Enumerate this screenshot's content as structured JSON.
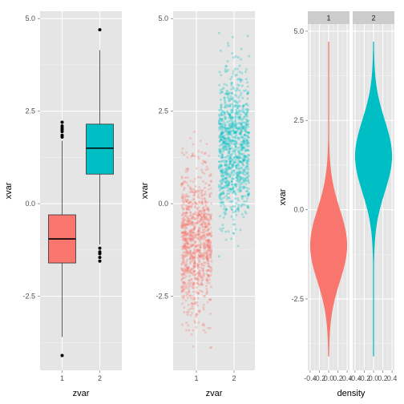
{
  "colors": {
    "group1": "#F8766D",
    "group2": "#00BFC4",
    "panel_bg": "#E5E5E5",
    "grid_major": "#FFFFFF",
    "grid_minor": "#F2F2F2",
    "strip_bg": "#CCCCCC"
  },
  "chart_data": [
    {
      "type": "box",
      "xlabel": "zvar",
      "ylabel": "xvar",
      "categories": [
        "1",
        "2"
      ],
      "ylim": [
        -4.5,
        5.2
      ],
      "yticks": [
        -2.5,
        0,
        2.5,
        5
      ],
      "ytick_labels": [
        "-2.5",
        "0.0",
        "2.5",
        "5.0"
      ],
      "series": [
        {
          "category": "1",
          "min": -3.6,
          "q1": -1.6,
          "median": -0.95,
          "q3": -0.3,
          "max": 1.7,
          "outliers": [
            2.2,
            2.1,
            2.05,
            2.0,
            1.95,
            1.85,
            1.8,
            -4.1
          ]
        },
        {
          "category": "2",
          "min": -1.1,
          "q1": 0.8,
          "median": 1.5,
          "q3": 2.15,
          "max": 4.15,
          "outliers": [
            4.7,
            -1.2,
            -1.3,
            -1.35,
            -1.45,
            -1.55
          ]
        }
      ]
    },
    {
      "type": "scatter",
      "xlabel": "zvar",
      "ylabel": "xvar",
      "categories": [
        "1",
        "2"
      ],
      "ylim": [
        -4.5,
        5.2
      ],
      "yticks": [
        -2.5,
        0,
        2.5,
        5
      ],
      "ytick_labels": [
        "-2.5",
        "0.0",
        "2.5",
        "5.0"
      ],
      "jitter": 0.4,
      "alpha": 0.3,
      "series": [
        {
          "category": "1",
          "n": 1000,
          "mean": -1.0,
          "sd": 1.0,
          "min": -4.1,
          "max": 2.2
        },
        {
          "category": "2",
          "n": 1000,
          "mean": 1.5,
          "sd": 1.0,
          "min": -1.55,
          "max": 4.7
        }
      ]
    },
    {
      "type": "area",
      "subtype": "violin-facets",
      "xlabel": "density",
      "ylabel": "xvar",
      "facets": [
        "1",
        "2"
      ],
      "xlim": [
        -0.45,
        0.45
      ],
      "xticks": [
        -0.4,
        -0.2,
        0.0,
        0.2,
        0.4
      ],
      "xtick_labels": [
        "-0.4",
        "-0.2",
        "0.0",
        "0.2",
        "0.4"
      ],
      "ylim": [
        -4.5,
        5.2
      ],
      "yticks": [
        -2.5,
        0,
        2.5,
        5
      ],
      "ytick_labels": [
        "-2.5",
        "0.0",
        "2.5",
        "5.0"
      ],
      "series": [
        {
          "facet": "1",
          "mean": -1.0,
          "sd": 1.0,
          "min": -4.1,
          "max": 4.7
        },
        {
          "facet": "2",
          "mean": 1.5,
          "sd": 1.0,
          "min": -4.1,
          "max": 4.7
        }
      ]
    }
  ]
}
